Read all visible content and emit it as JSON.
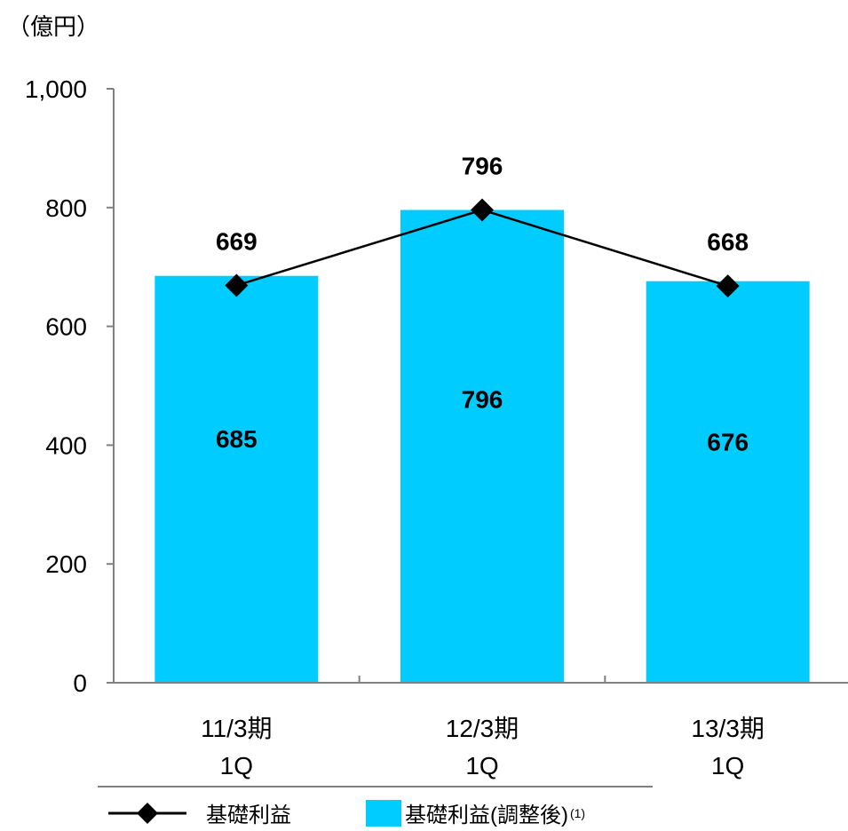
{
  "unit_label": "（億円）",
  "chart_data": {
    "type": "bar",
    "categories": [
      [
        "11/3期",
        "1Q"
      ],
      [
        "12/3期",
        "1Q"
      ],
      [
        "13/3期",
        "1Q"
      ]
    ],
    "ylim": [
      0,
      1000
    ],
    "yticks": [
      0,
      200,
      400,
      600,
      800,
      1000
    ],
    "ytick_labels": [
      "0",
      "200",
      "400",
      "600",
      "800",
      "1,000"
    ],
    "grid": false,
    "series": [
      {
        "name": "基礎利益(調整後)",
        "type": "bar",
        "color": "#00CCFF",
        "values": [
          685,
          796,
          676
        ],
        "labels": [
          "685",
          "796",
          "676"
        ]
      },
      {
        "name": "基礎利益",
        "type": "line",
        "marker": "diamond",
        "color": "#000000",
        "values": [
          669,
          796,
          668
        ],
        "labels": [
          "669",
          "796",
          "668"
        ]
      }
    ],
    "legend_position": "bottom",
    "legend": {
      "line_label": "基礎利益",
      "bar_label": "基礎利益(調整後)",
      "bar_note": "(1)"
    }
  }
}
